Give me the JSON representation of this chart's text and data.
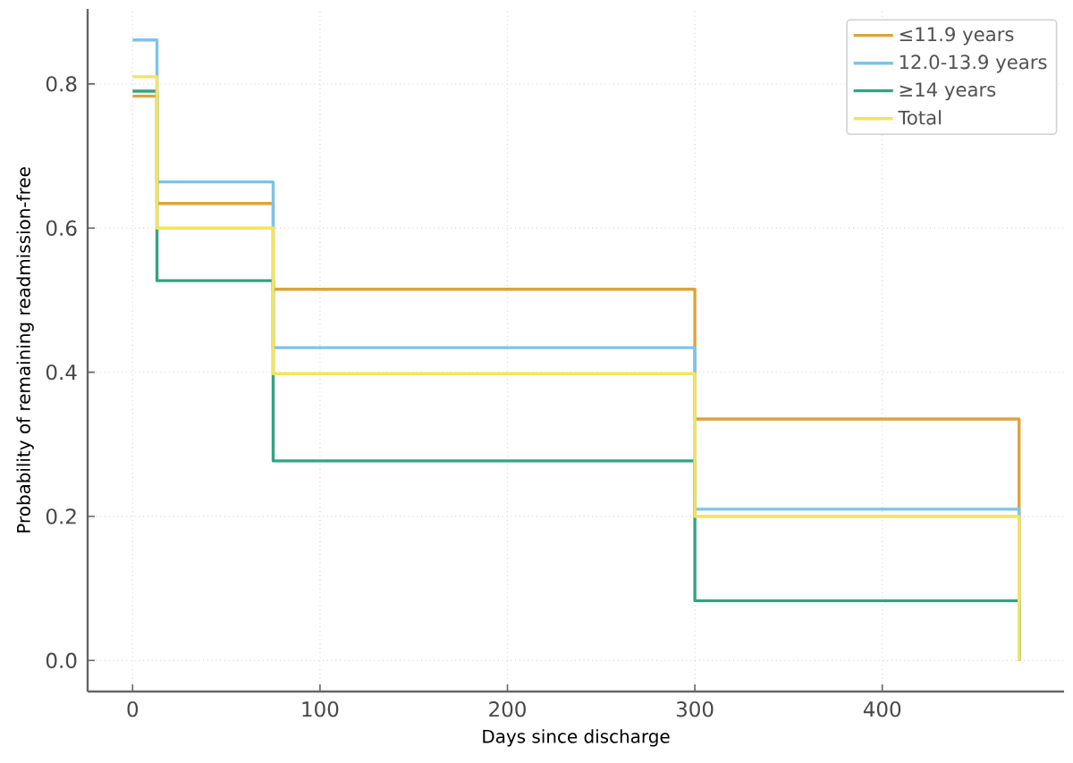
{
  "chart_data": {
    "type": "step",
    "xlabel": "Days since discharge",
    "ylabel": "Probability of remaining readmission-free",
    "x": [
      0,
      13,
      75,
      300,
      473
    ],
    "series": [
      {
        "name": "≤11.9 years",
        "color": "#dba43c",
        "values": [
          0.783,
          0.634,
          0.515,
          0.335,
          0
        ]
      },
      {
        "name": "12.0-13.9 years",
        "color": "#7dc3e8",
        "values": [
          0.861,
          0.664,
          0.434,
          0.21,
          0
        ]
      },
      {
        "name": "≥14 years",
        "color": "#35a383",
        "values": [
          0.79,
          0.527,
          0.277,
          0.083,
          0
        ]
      },
      {
        "name": "Total",
        "color": "#f4e35e",
        "values": [
          0.81,
          0.6,
          0.398,
          0.2,
          0
        ]
      }
    ],
    "xlim": [
      -24,
      497
    ],
    "ylim": [
      -0.043,
      0.904
    ],
    "xticks": [
      0,
      100,
      200,
      300,
      400
    ],
    "yticks": [
      {
        "value": 0,
        "label": "0.0"
      },
      0.2,
      0.4,
      0.6,
      0.8
    ],
    "grid": true,
    "legend": "top right",
    "marker": "none",
    "line_style": "solid"
  }
}
